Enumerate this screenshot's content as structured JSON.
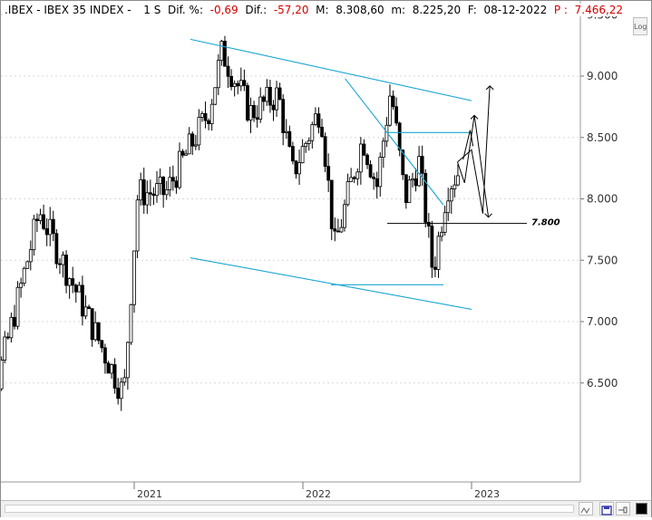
{
  "header": {
    "symbol": ".IBEX",
    "name": "IBEX 35 INDEX",
    "interval": "1 S",
    "dif_pct_label": "Dif. %:",
    "dif_pct_value": "-0,69",
    "dif_label": "Dif.:",
    "dif_value": "-57,20",
    "max_label": "M:",
    "max_value": "8.308,60",
    "min_label": "m:",
    "min_value": "8.225,20",
    "date_label": "F:",
    "date_value": "08-12-2022",
    "price_label": "P :",
    "price_value": "7.466,22"
  },
  "log_button": "Log",
  "colors": {
    "trendline": "#1aa6d2",
    "candle": "#000000",
    "projection": "#000000",
    "negative": "#d40000"
  },
  "icons": [
    "pattern-icon",
    "save-icon",
    "pin-icon",
    "color-swatch-icon"
  ],
  "chart_data": {
    "type": "candlestick",
    "x_tick_labels": [
      "2021",
      "2022",
      "2023"
    ],
    "y_tick_labels": [
      "9.500",
      "9.000",
      "8.500",
      "8.000",
      "7.500",
      "7.000",
      "6.500"
    ],
    "y_ticks": [
      9500,
      9000,
      8500,
      8000,
      7500,
      7000,
      6500
    ],
    "ylim": [
      6100,
      9550
    ],
    "series_segments": [
      {
        "from": "2020-01",
        "to": "2020-03",
        "start": 7300,
        "end": 6500
      },
      {
        "from": "2020-03",
        "to": "2020-06",
        "start": 6500,
        "end": 7900
      },
      {
        "from": "2020-06",
        "to": "2020-10",
        "start": 7900,
        "end": 6900
      },
      {
        "from": "2020-10",
        "to": "2020-12",
        "start": 6900,
        "end": 6400
      },
      {
        "from": "2020-12",
        "to": "2021-01",
        "start": 6400,
        "end": 8050
      },
      {
        "from": "2021-01",
        "to": "2021-03",
        "start": 8050,
        "end": 8050
      },
      {
        "from": "2021-03",
        "to": "2021-06",
        "start": 8050,
        "end": 8700
      },
      {
        "from": "2021-06",
        "to": "2021-07",
        "start": 8700,
        "end": 9200
      },
      {
        "from": "2021-07",
        "to": "2021-09",
        "start": 9200,
        "end": 8700
      },
      {
        "from": "2021-09",
        "to": "2021-11",
        "start": 8700,
        "end": 8850
      },
      {
        "from": "2021-11",
        "to": "2021-12",
        "start": 8850,
        "end": 8200
      },
      {
        "from": "2021-12",
        "to": "2022-02",
        "start": 8200,
        "end": 8750
      },
      {
        "from": "2022-02",
        "to": "2022-03",
        "start": 8750,
        "end": 7600
      },
      {
        "from": "2022-03",
        "to": "2022-05",
        "start": 7600,
        "end": 8500
      },
      {
        "from": "2022-05",
        "to": "2022-06",
        "start": 8500,
        "end": 8100
      },
      {
        "from": "2022-06",
        "to": "2022-07",
        "start": 8100,
        "end": 8900
      },
      {
        "from": "2022-07",
        "to": "2022-08",
        "start": 8900,
        "end": 8000
      },
      {
        "from": "2022-08",
        "to": "2022-09",
        "start": 8000,
        "end": 8300
      },
      {
        "from": "2022-09",
        "to": "2022-10",
        "start": 8300,
        "end": 7400
      },
      {
        "from": "2022-10",
        "to": "2022-11",
        "start": 7400,
        "end": 8100
      },
      {
        "from": "2022-11",
        "to": "2022-12",
        "start": 8100,
        "end": 8250
      }
    ],
    "annotations": {
      "upper_channel": {
        "from": [
          "2021-05",
          9300
        ],
        "to": [
          "2023-01",
          8800
        ]
      },
      "lower_channel": {
        "from": [
          "2021-05",
          7520
        ],
        "to": [
          "2023-01",
          7100
        ]
      },
      "falling_trend": {
        "from": [
          "2022-04",
          8980
        ],
        "to": [
          "2022-11",
          7950
        ]
      },
      "resistance_line": {
        "from": [
          "2022-07",
          8540
        ],
        "to": [
          "2023-01",
          8540
        ]
      },
      "support_low": {
        "from": [
          "2022-03",
          7300
        ],
        "to": [
          "2022-11",
          7300
        ]
      },
      "support_label_line": {
        "value": 7800,
        "label": "7.800"
      },
      "projections": "up/down zigzag scenarios from Dec-2022 toward 9.000 and 8.000"
    }
  }
}
